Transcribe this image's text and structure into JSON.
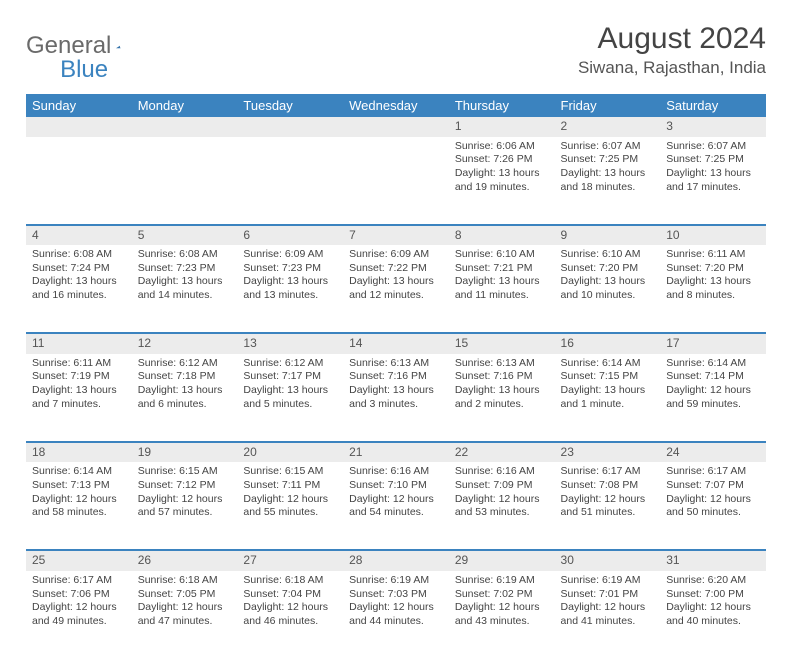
{
  "brand": {
    "part1": "General",
    "part2": "Blue"
  },
  "title": "August 2024",
  "location": "Siwana, Rajasthan, India",
  "colors": {
    "header_bg": "#3b83bf",
    "header_text": "#ffffff",
    "daynum_bg": "#ececec",
    "border": "#3b83bf",
    "body_text": "#444444",
    "page_bg": "#ffffff"
  },
  "day_names": [
    "Sunday",
    "Monday",
    "Tuesday",
    "Wednesday",
    "Thursday",
    "Friday",
    "Saturday"
  ],
  "weeks": [
    {
      "nums": [
        "",
        "",
        "",
        "",
        "1",
        "2",
        "3"
      ],
      "info": [
        "",
        "",
        "",
        "",
        "Sunrise: 6:06 AM\nSunset: 7:26 PM\nDaylight: 13 hours and 19 minutes.",
        "Sunrise: 6:07 AM\nSunset: 7:25 PM\nDaylight: 13 hours and 18 minutes.",
        "Sunrise: 6:07 AM\nSunset: 7:25 PM\nDaylight: 13 hours and 17 minutes."
      ]
    },
    {
      "nums": [
        "4",
        "5",
        "6",
        "7",
        "8",
        "9",
        "10"
      ],
      "info": [
        "Sunrise: 6:08 AM\nSunset: 7:24 PM\nDaylight: 13 hours and 16 minutes.",
        "Sunrise: 6:08 AM\nSunset: 7:23 PM\nDaylight: 13 hours and 14 minutes.",
        "Sunrise: 6:09 AM\nSunset: 7:23 PM\nDaylight: 13 hours and 13 minutes.",
        "Sunrise: 6:09 AM\nSunset: 7:22 PM\nDaylight: 13 hours and 12 minutes.",
        "Sunrise: 6:10 AM\nSunset: 7:21 PM\nDaylight: 13 hours and 11 minutes.",
        "Sunrise: 6:10 AM\nSunset: 7:20 PM\nDaylight: 13 hours and 10 minutes.",
        "Sunrise: 6:11 AM\nSunset: 7:20 PM\nDaylight: 13 hours and 8 minutes."
      ]
    },
    {
      "nums": [
        "11",
        "12",
        "13",
        "14",
        "15",
        "16",
        "17"
      ],
      "info": [
        "Sunrise: 6:11 AM\nSunset: 7:19 PM\nDaylight: 13 hours and 7 minutes.",
        "Sunrise: 6:12 AM\nSunset: 7:18 PM\nDaylight: 13 hours and 6 minutes.",
        "Sunrise: 6:12 AM\nSunset: 7:17 PM\nDaylight: 13 hours and 5 minutes.",
        "Sunrise: 6:13 AM\nSunset: 7:16 PM\nDaylight: 13 hours and 3 minutes.",
        "Sunrise: 6:13 AM\nSunset: 7:16 PM\nDaylight: 13 hours and 2 minutes.",
        "Sunrise: 6:14 AM\nSunset: 7:15 PM\nDaylight: 13 hours and 1 minute.",
        "Sunrise: 6:14 AM\nSunset: 7:14 PM\nDaylight: 12 hours and 59 minutes."
      ]
    },
    {
      "nums": [
        "18",
        "19",
        "20",
        "21",
        "22",
        "23",
        "24"
      ],
      "info": [
        "Sunrise: 6:14 AM\nSunset: 7:13 PM\nDaylight: 12 hours and 58 minutes.",
        "Sunrise: 6:15 AM\nSunset: 7:12 PM\nDaylight: 12 hours and 57 minutes.",
        "Sunrise: 6:15 AM\nSunset: 7:11 PM\nDaylight: 12 hours and 55 minutes.",
        "Sunrise: 6:16 AM\nSunset: 7:10 PM\nDaylight: 12 hours and 54 minutes.",
        "Sunrise: 6:16 AM\nSunset: 7:09 PM\nDaylight: 12 hours and 53 minutes.",
        "Sunrise: 6:17 AM\nSunset: 7:08 PM\nDaylight: 12 hours and 51 minutes.",
        "Sunrise: 6:17 AM\nSunset: 7:07 PM\nDaylight: 12 hours and 50 minutes."
      ]
    },
    {
      "nums": [
        "25",
        "26",
        "27",
        "28",
        "29",
        "30",
        "31"
      ],
      "info": [
        "Sunrise: 6:17 AM\nSunset: 7:06 PM\nDaylight: 12 hours and 49 minutes.",
        "Sunrise: 6:18 AM\nSunset: 7:05 PM\nDaylight: 12 hours and 47 minutes.",
        "Sunrise: 6:18 AM\nSunset: 7:04 PM\nDaylight: 12 hours and 46 minutes.",
        "Sunrise: 6:19 AM\nSunset: 7:03 PM\nDaylight: 12 hours and 44 minutes.",
        "Sunrise: 6:19 AM\nSunset: 7:02 PM\nDaylight: 12 hours and 43 minutes.",
        "Sunrise: 6:19 AM\nSunset: 7:01 PM\nDaylight: 12 hours and 41 minutes.",
        "Sunrise: 6:20 AM\nSunset: 7:00 PM\nDaylight: 12 hours and 40 minutes."
      ]
    }
  ]
}
